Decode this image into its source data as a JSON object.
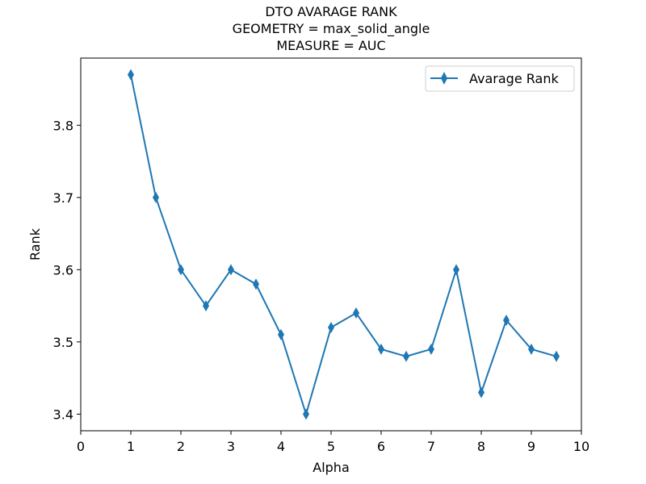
{
  "chart_data": {
    "type": "line",
    "title_lines": [
      "DTO AVARAGE RANK",
      "GEOMETRY = max_solid_angle",
      "MEASURE = AUC"
    ],
    "xlabel": "Alpha",
    "ylabel": "Rank",
    "xlim": [
      0,
      10
    ],
    "ylim": [
      3.377,
      3.893
    ],
    "xticks": [
      0,
      1,
      2,
      3,
      4,
      5,
      6,
      7,
      8,
      9,
      10
    ],
    "yticks": [
      3.4,
      3.5,
      3.6,
      3.7,
      3.8
    ],
    "grid": false,
    "legend_position": "top-right",
    "series": [
      {
        "name": "Avarage Rank",
        "color": "#1f77b4",
        "marker": "thin-diamond",
        "x": [
          1,
          1.5,
          2,
          2.5,
          3,
          3.5,
          4,
          4.5,
          5,
          5.5,
          6,
          6.5,
          7,
          7.5,
          8,
          8.5,
          9,
          9.5
        ],
        "y": [
          3.87,
          3.7,
          3.6,
          3.55,
          3.6,
          3.58,
          3.51,
          3.4,
          3.52,
          3.54,
          3.49,
          3.48,
          3.49,
          3.6,
          3.43,
          3.53,
          3.49,
          3.48
        ]
      }
    ]
  }
}
